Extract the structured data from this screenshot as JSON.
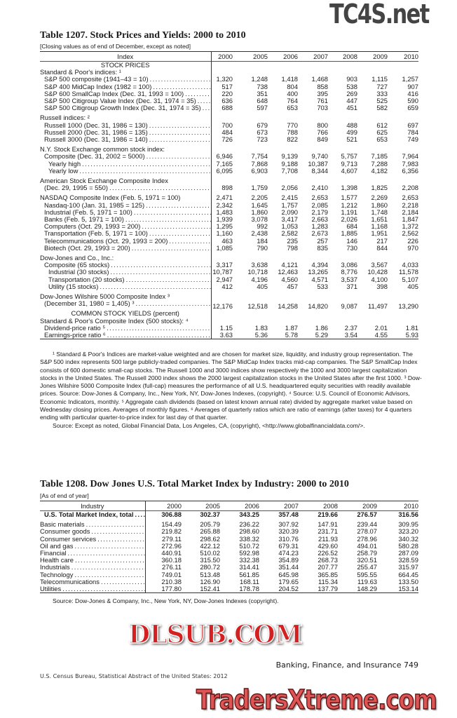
{
  "table1": {
    "title": "Table 1207. Stock Prices and Yields: 2000 to 2010",
    "subtitle": "[Closing values as of end of December, except as noted]",
    "label_header": "Index",
    "years": [
      "2000",
      "2005",
      "2006",
      "2007",
      "2008",
      "2009",
      "2010"
    ],
    "rows": [
      {
        "type": "section",
        "label": "STOCK PRICES"
      },
      {
        "type": "head",
        "label": "Standard & Poor's indices: ¹"
      },
      {
        "label": "S&P 500 composite (1941–43 = 10)",
        "indent": 1,
        "values": [
          "1,320",
          "1,248",
          "1,418",
          "1,468",
          "903",
          "1,115",
          "1,257"
        ]
      },
      {
        "label": "S&P 400 MidCap Index (1982 = 100)",
        "indent": 1,
        "values": [
          "517",
          "738",
          "804",
          "858",
          "538",
          "727",
          "907"
        ]
      },
      {
        "label": "S&P 600 SmallCap Index (Dec. 31, 1993 = 100)",
        "indent": 1,
        "values": [
          "220",
          "351",
          "400",
          "395",
          "269",
          "333",
          "416"
        ]
      },
      {
        "label": "S&P 500 Citigroup Value Index (Dec. 31, 1974 = 35)",
        "indent": 1,
        "values": [
          "636",
          "648",
          "764",
          "761",
          "447",
          "525",
          "590"
        ]
      },
      {
        "label": "S&P 500 Citigroup Growth Index (Dec. 31, 1974 = 35)",
        "indent": 1,
        "values": [
          "688",
          "597",
          "653",
          "703",
          "451",
          "582",
          "659"
        ]
      },
      {
        "type": "gap"
      },
      {
        "type": "head",
        "label": "Russell indices: ²"
      },
      {
        "label": "Russell 1000 (Dec. 31, 1986 = 130)",
        "indent": 1,
        "values": [
          "700",
          "679",
          "770",
          "800",
          "488",
          "612",
          "697"
        ]
      },
      {
        "label": "Russell 2000 (Dec. 31, 1986 = 135)",
        "indent": 1,
        "values": [
          "484",
          "673",
          "788",
          "766",
          "499",
          "625",
          "784"
        ]
      },
      {
        "label": "Russell 3000 (Dec. 31, 1986 = 140)",
        "indent": 1,
        "values": [
          "726",
          "723",
          "822",
          "849",
          "521",
          "653",
          "749"
        ]
      },
      {
        "type": "gap"
      },
      {
        "type": "head",
        "label": "N.Y. Stock Exchange common stock index:"
      },
      {
        "label": "Composite (Dec. 31, 2002 = 5000)",
        "indent": 1,
        "values": [
          "6,946",
          "7,754",
          "9,139",
          "9,740",
          "5,757",
          "7,185",
          "7,964"
        ]
      },
      {
        "label": "Yearly high",
        "indent": 2,
        "values": [
          "7,165",
          "7,868",
          "9,188",
          "10,387",
          "9,713",
          "7,288",
          "7,983"
        ]
      },
      {
        "label": "Yearly low",
        "indent": 2,
        "values": [
          "6,095",
          "6,903",
          "7,708",
          "8,344",
          "4,607",
          "4,182",
          "6,356"
        ]
      },
      {
        "type": "gap"
      },
      {
        "type": "head",
        "label": "American Stock Exchange Composite Index"
      },
      {
        "label": "(Dec. 29, 1995 = 550)",
        "indent": 1,
        "values": [
          "898",
          "1,759",
          "2,056",
          "2,410",
          "1,398",
          "1,825",
          "2,208"
        ]
      },
      {
        "type": "gap"
      },
      {
        "label": "NASDAQ Composite Index (Feb. 5, 1971 = 100)",
        "indent": 0,
        "nodots": true,
        "values": [
          "2,471",
          "2,205",
          "2,415",
          "2,653",
          "1,577",
          "2,269",
          "2,653"
        ]
      },
      {
        "label": "Nasdaq-100 (Jan. 31, 1985 = 125)",
        "indent": 1,
        "values": [
          "2,342",
          "1,645",
          "1,757",
          "2,085",
          "1,212",
          "1,860",
          "2,218"
        ]
      },
      {
        "label": "Industrial (Feb. 5, 1971 = 100)",
        "indent": 1,
        "values": [
          "1,483",
          "1,860",
          "2,090",
          "2,179",
          "1,191",
          "1,748",
          "2,184"
        ]
      },
      {
        "label": "Banks (Feb. 5, 1971 = 100)",
        "indent": 1,
        "values": [
          "1,939",
          "3,078",
          "3,417",
          "2,663",
          "2,026",
          "1,651",
          "1,847"
        ]
      },
      {
        "label": "Computers (Oct. 29, 1993 = 200)",
        "indent": 1,
        "values": [
          "1,295",
          "992",
          "1,053",
          "1,283",
          "684",
          "1,168",
          "1,372"
        ]
      },
      {
        "label": "Transportation (Feb. 5, 1971 = 100)",
        "indent": 1,
        "values": [
          "1,160",
          "2,438",
          "2,582",
          "2,673",
          "1,885",
          "1,951",
          "2,562"
        ]
      },
      {
        "label": "Telecommunications (Oct. 29, 1993 = 200)",
        "indent": 1,
        "values": [
          "463",
          "184",
          "235",
          "257",
          "146",
          "217",
          "226"
        ]
      },
      {
        "label": "Biotech (Oct. 29, 1993 = 200)",
        "indent": 1,
        "values": [
          "1,085",
          "790",
          "798",
          "835",
          "730",
          "844",
          "970"
        ]
      },
      {
        "type": "gap"
      },
      {
        "type": "head",
        "label": "Dow-Jones and Co., Inc.:"
      },
      {
        "label": "Composite (65 stocks)",
        "indent": 1,
        "values": [
          "3,317",
          "3,638",
          "4,121",
          "4,394",
          "3,086",
          "3,567",
          "4,033"
        ]
      },
      {
        "label": "Industrial (30 stocks)",
        "indent": 2,
        "values": [
          "10,787",
          "10,718",
          "12,463",
          "13,265",
          "8,776",
          "10,428",
          "11,578"
        ]
      },
      {
        "label": "Transportation (20 stocks)",
        "indent": 2,
        "values": [
          "2,947",
          "4,196",
          "4,560",
          "4,571",
          "3,537",
          "4,100",
          "5,107"
        ]
      },
      {
        "label": "Utility (15 stocks)",
        "indent": 2,
        "values": [
          "412",
          "405",
          "457",
          "533",
          "371",
          "398",
          "405"
        ]
      },
      {
        "type": "gap"
      },
      {
        "type": "head",
        "label": "Dow-Jones Wilshire 5000 Composite Index ³"
      },
      {
        "label": "(December 31, 1980 = 1,405) ³",
        "indent": 1,
        "tall": true,
        "values": [
          "12,176",
          "12,518",
          "14,258",
          "14,820",
          "9,087",
          "11,497",
          "13,290"
        ]
      },
      {
        "type": "section",
        "label": "COMMON STOCK YIELDS (percent)"
      },
      {
        "type": "head",
        "label": "Standard & Poor's Composite Index (500 stocks): ⁴"
      },
      {
        "label": "Dividend-price ratio ⁵",
        "indent": 1,
        "values": [
          "1.15",
          "1.83",
          "1.87",
          "1.86",
          "2.37",
          "2.01",
          "1.81"
        ]
      },
      {
        "label": "Earnings-price ratio ⁶",
        "indent": 1,
        "values": [
          "3.63",
          "5.36",
          "5.78",
          "5.29",
          "3.54",
          "4.55",
          "5.93"
        ]
      }
    ],
    "footnotes": [
      "¹ Standard & Poor's Indices are market-value weighted and are chosen for market size, liquidity, and industry group representation. The S&P 500 index represents 500 large publicly-traded companies. The S&P MidCap Index tracks mid-cap companies. The S&P SmallCap Index consists of 600 domestic small-cap stocks. The Russell 1000 and 3000 indices show respectively the 1000 and 3000 largest capitalization stocks in the United States. The Russell 2000 index shows the 2000 largest capitalization stocks in the United States after the first 1000. ³ Dow-Jones Wilshire 5000 Composite Index (full-cap) measures the performance of all U.S. headquartered equity securities with readily available prices. Source: Dow-Jones & Company, Inc., New York, NY, Dow-Jones Indexes, (copyright). ⁴ Source: U.S. Council of Economic Advisors, Economic Indicators, monthly. ⁵ Aggregate cash dividends (based on latest known annual rate) divided by aggregate market value based on Wednesday closing prices. Averages of monthly figures. ⁶ Averages of quarterly ratios which are ratio of earnings (after taxes) for 4 quarters ending with particular quarter-to-price index for last day of that quarter."
    ],
    "source": "Source: Except as noted, Global Financial Data, Los Angeles, CA, (copyright), <http://www.globalfinancialdata.com/>."
  },
  "table2": {
    "title": "Table 1208. Dow Jones U.S. Total Market Index by Industry: 2000 to 2010",
    "subtitle": "[As of end of year]",
    "label_header": "Industry",
    "years": [
      "2000",
      "2005",
      "2006",
      "2007",
      "2008",
      "2009",
      "2010"
    ],
    "rows": [
      {
        "label": "U.S. Total Market Index, total",
        "bold": true,
        "indent": 1,
        "values": [
          "306.88",
          "302.37",
          "343.25",
          "357.48",
          "219.66",
          "276.57",
          "316.56"
        ]
      },
      {
        "type": "gap"
      },
      {
        "label": "Basic materials",
        "indent": 0,
        "values": [
          "154.49",
          "205.79",
          "236.22",
          "307.92",
          "147.91",
          "239.44",
          "309.95"
        ]
      },
      {
        "label": "Consumer goods",
        "indent": 0,
        "values": [
          "219.82",
          "265.88",
          "298.60",
          "320.39",
          "231.71",
          "278.07",
          "323.20"
        ]
      },
      {
        "label": "Consumer services",
        "indent": 0,
        "values": [
          "279.11",
          "298.62",
          "338.32",
          "310.76",
          "211.93",
          "278.96",
          "340.32"
        ]
      },
      {
        "label": "Oil and gas",
        "indent": 0,
        "values": [
          "272.96",
          "422.12",
          "510.72",
          "679.31",
          "429.60",
          "494.01",
          "580.28"
        ]
      },
      {
        "label": "Financial",
        "indent": 0,
        "values": [
          "440.91",
          "510.02",
          "592.98",
          "474.23",
          "226.52",
          "258.79",
          "287.09"
        ]
      },
      {
        "label": "Health care",
        "indent": 0,
        "values": [
          "360.18",
          "315.50",
          "332.38",
          "354.89",
          "268.73",
          "320.51",
          "328.59"
        ]
      },
      {
        "label": "Industrials",
        "indent": 0,
        "values": [
          "276.11",
          "280.72",
          "314.41",
          "351.44",
          "207.77",
          "255.47",
          "315.97"
        ]
      },
      {
        "label": "Technology",
        "indent": 0,
        "values": [
          "749.01",
          "513.48",
          "561.85",
          "645.98",
          "365.85",
          "595.55",
          "664.45"
        ]
      },
      {
        "label": "Telecommunications",
        "indent": 0,
        "values": [
          "210.38",
          "126.90",
          "168.11",
          "179.65",
          "115.34",
          "119.63",
          "133.50"
        ]
      },
      {
        "label": "Utilities",
        "indent": 0,
        "values": [
          "177.80",
          "152.41",
          "178.78",
          "204.52",
          "137.79",
          "148.29",
          "153.14"
        ]
      }
    ],
    "source": "Source: Dow-Jones & Company, Inc., New York, NY, Dow-Jones Indexes (copyright)."
  },
  "footer": {
    "left": "U.S. Census Bureau, Statistical Abstract of the United States: 2012",
    "right": "Banking, Finance, and Insurance  749"
  },
  "watermarks": {
    "top": "TC4S.net",
    "middle": "DLSUB.COM",
    "bottom": "TradersXtreme.com"
  }
}
